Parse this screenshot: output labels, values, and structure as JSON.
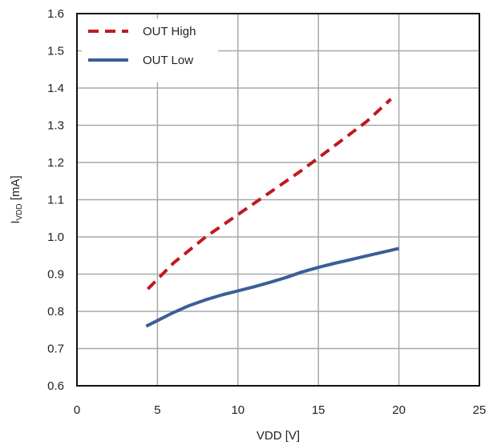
{
  "chart_data": {
    "type": "line",
    "xlabel": "VDD [V]",
    "ylabel_main": "I",
    "ylabel_sub": "VDD",
    "ylabel_unit": " [mA]",
    "xlim": [
      0,
      25
    ],
    "ylim": [
      0.6,
      1.6
    ],
    "x_ticks": [
      0,
      5,
      10,
      15,
      20,
      25
    ],
    "y_ticks": [
      0.6,
      0.7,
      0.8,
      0.9,
      1.0,
      1.1,
      1.2,
      1.3,
      1.4,
      1.5,
      1.6
    ],
    "y_tick_labels": [
      "0.6",
      "0.7",
      "0.8",
      "0.9",
      "1.0",
      "1.1",
      "1.2",
      "1.3",
      "1.4",
      "1.5",
      "1.6"
    ],
    "x_tick_labels": [
      "0",
      "5",
      "10",
      "15",
      "20",
      "25"
    ],
    "grid": true,
    "legend_position": "top-left",
    "series": [
      {
        "name": "OUT High",
        "color": "#c0191e",
        "style": "dashed",
        "x": [
          4.4,
          6,
          8,
          10,
          12,
          14,
          16,
          18,
          19.5
        ],
        "y": [
          0.86,
          0.93,
          1.0,
          1.06,
          1.12,
          1.18,
          1.245,
          1.31,
          1.37
        ]
      },
      {
        "name": "OUT Low",
        "color": "#3a5f96",
        "style": "solid",
        "x": [
          4.3,
          5,
          6,
          7,
          8,
          9,
          10,
          11,
          12,
          13,
          14,
          15,
          16,
          17,
          18,
          19,
          20
        ],
        "y": [
          0.76,
          0.775,
          0.797,
          0.816,
          0.831,
          0.844,
          0.855,
          0.866,
          0.878,
          0.891,
          0.906,
          0.918,
          0.929,
          0.939,
          0.949,
          0.959,
          0.969
        ]
      }
    ]
  }
}
